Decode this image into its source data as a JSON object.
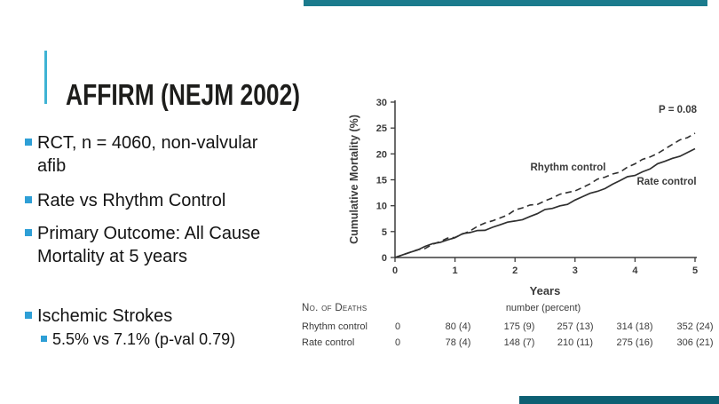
{
  "slide": {
    "title": "AFFIRM (NEJM 2002)",
    "bullets": [
      {
        "text": "RCT, n = 4060, non-valvular\nafib"
      },
      {
        "text": "Rate vs Rhythm Control"
      },
      {
        "text": "Primary Outcome: All Cause\nMortality at 5 years"
      },
      {
        "text": "Ischemic Strokes"
      }
    ],
    "sub_bullet": "5.5% vs 7.1% (p-val 0.79)",
    "accent_colors": {
      "bullet_square": "#2e9fd6",
      "title_rule": "#3fb3d4",
      "top_bar": "#1b7b8d",
      "bottom_bar": "#0d6073"
    }
  },
  "chart_data": {
    "type": "line",
    "title": "",
    "xlabel": "Years",
    "ylabel": "Cumulative Mortality (%)",
    "p_value_label": "P = 0.08",
    "x": [
      0,
      1,
      2,
      3,
      4,
      5
    ],
    "xticks": [
      "0",
      "1",
      "2",
      "3",
      "4",
      "5"
    ],
    "yticks": [
      "0",
      "5",
      "10",
      "15",
      "20",
      "25",
      "30"
    ],
    "ylim": [
      0,
      30
    ],
    "xlim": [
      0,
      5
    ],
    "grid": false,
    "legend_position": "inline-labels",
    "series": [
      {
        "name": "Rhythm control",
        "style": "dashed",
        "values": [
          0,
          4,
          9,
          13,
          18,
          24
        ]
      },
      {
        "name": "Rate control",
        "style": "solid",
        "values": [
          0,
          4,
          7,
          11,
          16,
          21
        ]
      }
    ],
    "table": {
      "title": "No. of Deaths",
      "unit_header": "number (percent)",
      "rows": [
        {
          "label": "Rhythm control",
          "values": [
            "0",
            "80 (4)",
            "175 (9)",
            "257 (13)",
            "314 (18)",
            "352 (24)"
          ]
        },
        {
          "label": "Rate control",
          "values": [
            "0",
            "78 (4)",
            "148 (7)",
            "210 (11)",
            "275 (16)",
            "306 (21)"
          ]
        }
      ]
    }
  }
}
